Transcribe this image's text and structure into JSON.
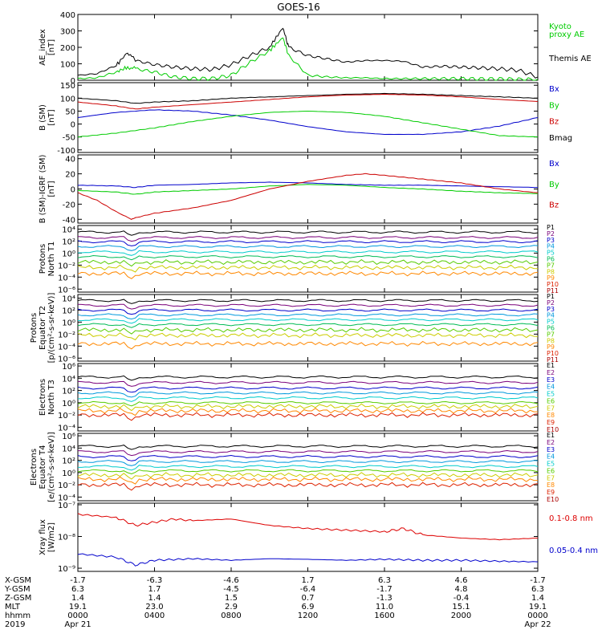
{
  "title": "GOES-16",
  "panels": [
    {
      "id": "ae",
      "ylabel": [
        "AE_index",
        "[nT]"
      ],
      "yticks": [
        "400",
        "300",
        "200",
        "100",
        "0"
      ],
      "legend": [
        {
          "text": "Kyoto",
          "color": "#00cc00"
        },
        {
          "text": "proxy AE",
          "color": "#00cc00"
        },
        {
          "text": "Themis AE",
          "color": "#000000"
        }
      ]
    },
    {
      "id": "bsm",
      "ylabel": [
        "B (SM)",
        "[nT]"
      ],
      "yticks": [
        "150",
        "100",
        "50",
        "0",
        "-50",
        "-100"
      ],
      "legend": [
        {
          "text": "Bx",
          "color": "#0000cc"
        },
        {
          "text": "By",
          "color": "#00cc00"
        },
        {
          "text": "Bz",
          "color": "#cc0000"
        },
        {
          "text": "Bmag",
          "color": "#000000"
        }
      ]
    },
    {
      "id": "bigrf",
      "ylabel": [
        "B (SM)-IGRF (SM)",
        "[nT]"
      ],
      "yticks": [
        "40",
        "20",
        "0",
        "-20",
        "-40"
      ],
      "legend": [
        {
          "text": "Bx",
          "color": "#0000cc"
        },
        {
          "text": "By",
          "color": "#00cc00"
        },
        {
          "text": "Bz",
          "color": "#cc0000"
        }
      ]
    },
    {
      "id": "pn",
      "ylabel": [
        "Protons",
        "North T1"
      ],
      "yticks": [
        "10⁴",
        "10²",
        "10⁰",
        "10⁻²",
        "10⁻⁴",
        "10⁻⁶"
      ],
      "legend": [
        {
          "text": "P1",
          "color": "#000000"
        },
        {
          "text": "P2",
          "color": "#7a007a"
        },
        {
          "text": "P3",
          "color": "#0000cc"
        },
        {
          "text": "P4",
          "color": "#0099dd"
        },
        {
          "text": "P5",
          "color": "#00cccc"
        },
        {
          "text": "P6",
          "color": "#00bb55"
        },
        {
          "text": "P7",
          "color": "#55cc00"
        },
        {
          "text": "P8",
          "color": "#cccc00"
        },
        {
          "text": "P9",
          "color": "#ff8800"
        },
        {
          "text": "P10",
          "color": "#dd2200"
        },
        {
          "text": "P11",
          "color": "#aa0000"
        }
      ]
    },
    {
      "id": "pe",
      "ylabel": [
        "Protons",
        "Equator T2",
        "[p/(cm²-s-sr-keV)]"
      ],
      "yticks": [
        "10⁴",
        "10²",
        "10⁰",
        "10⁻²",
        "10⁻⁴",
        "10⁻⁶"
      ],
      "legend": [
        {
          "text": "P1",
          "color": "#000000"
        },
        {
          "text": "P2",
          "color": "#7a007a"
        },
        {
          "text": "P3",
          "color": "#0000cc"
        },
        {
          "text": "P4",
          "color": "#0099dd"
        },
        {
          "text": "P5",
          "color": "#00cccc"
        },
        {
          "text": "P6",
          "color": "#00bb55"
        },
        {
          "text": "P7",
          "color": "#55cc00"
        },
        {
          "text": "P8",
          "color": "#cccc00"
        },
        {
          "text": "P9",
          "color": "#ff8800"
        },
        {
          "text": "P10",
          "color": "#dd2200"
        },
        {
          "text": "P11",
          "color": "#aa0000"
        }
      ]
    },
    {
      "id": "en",
      "ylabel": [
        "Electrons",
        "North T3"
      ],
      "yticks": [
        "10⁶",
        "10⁴",
        "10²",
        "10⁰",
        "10⁻²",
        "10⁻⁴"
      ],
      "legend": [
        {
          "text": "E1",
          "color": "#000000"
        },
        {
          "text": "E2",
          "color": "#7a007a"
        },
        {
          "text": "E3",
          "color": "#0000cc"
        },
        {
          "text": "E4",
          "color": "#0099dd"
        },
        {
          "text": "E5",
          "color": "#00cccc"
        },
        {
          "text": "E6",
          "color": "#55cc00"
        },
        {
          "text": "E7",
          "color": "#cccc00"
        },
        {
          "text": "E8",
          "color": "#ff8800"
        },
        {
          "text": "E9",
          "color": "#dd2200"
        },
        {
          "text": "E10",
          "color": "#aa0000"
        }
      ]
    },
    {
      "id": "ee",
      "ylabel": [
        "Electrons",
        "Equator T4",
        "[e/(cm²-s-sr-keV)]"
      ],
      "yticks": [
        "10⁶",
        "10⁴",
        "10²",
        "10⁰",
        "10⁻²",
        "10⁻⁴"
      ],
      "legend": [
        {
          "text": "E1",
          "color": "#000000"
        },
        {
          "text": "E2",
          "color": "#7a007a"
        },
        {
          "text": "E3",
          "color": "#0000cc"
        },
        {
          "text": "E4",
          "color": "#0099dd"
        },
        {
          "text": "E5",
          "color": "#00cccc"
        },
        {
          "text": "E6",
          "color": "#55cc00"
        },
        {
          "text": "E7",
          "color": "#cccc00"
        },
        {
          "text": "E8",
          "color": "#ff8800"
        },
        {
          "text": "E9",
          "color": "#dd2200"
        },
        {
          "text": "E10",
          "color": "#aa0000"
        }
      ]
    },
    {
      "id": "xray",
      "ylabel": [
        "Xray flux",
        "[W/m2]"
      ],
      "yticks": [
        "10⁻⁷",
        "10⁻⁸",
        "10⁻⁹"
      ],
      "legend": [
        {
          "text": "0.1-0.8 nm",
          "color": "#dd0000"
        },
        {
          "text": "0.05-0.4 nm",
          "color": "#0000cc"
        }
      ]
    }
  ],
  "footer": {
    "row_labels": [
      "X-GSM",
      "Y-GSM",
      "Z-GSM",
      "MLT",
      "hhmm",
      "2019"
    ],
    "columns": [
      [
        "-1.7",
        "6.3",
        "1.4",
        "19.1",
        "0000",
        "Apr 21"
      ],
      [
        "-6.3",
        "1.7",
        "1.4",
        "23.0",
        "0400",
        ""
      ],
      [
        "-4.6",
        "-4.5",
        "1.5",
        "2.9",
        "0800",
        ""
      ],
      [
        "1.7",
        "-6.4",
        "0.7",
        "6.9",
        "1200",
        ""
      ],
      [
        "6.3",
        "-1.7",
        "-1.3",
        "11.0",
        "1600",
        ""
      ],
      [
        "4.6",
        "4.8",
        "-0.4",
        "15.1",
        "2000",
        ""
      ],
      [
        "-1.7",
        "6.3",
        "1.4",
        "19.1",
        "0000",
        "Apr 22"
      ]
    ]
  },
  "chart_data": {
    "type": "line",
    "x_hours": [
      0,
      4,
      8,
      12,
      16,
      20,
      24
    ],
    "series": [
      {
        "panel": "ae",
        "name": "Themis AE",
        "color": "#000000",
        "x": [
          0,
          1,
          2,
          2.6,
          3,
          4,
          5,
          6,
          7,
          8,
          9,
          10,
          10.7,
          11,
          12,
          13,
          14,
          15,
          16,
          17,
          18,
          19,
          20,
          21,
          22,
          23,
          24
        ],
        "y": [
          30,
          40,
          90,
          170,
          120,
          95,
          80,
          70,
          65,
          95,
          150,
          200,
          320,
          200,
          150,
          130,
          110,
          120,
          120,
          115,
          80,
          85,
          80,
          75,
          70,
          60,
          20
        ]
      },
      {
        "panel": "ae",
        "name": "Kyoto proxy AE",
        "color": "#00cc00",
        "x": [
          0,
          1,
          2,
          2.6,
          3,
          4,
          5,
          6,
          7,
          8,
          9,
          10,
          10.7,
          11,
          12,
          13,
          14,
          15,
          16,
          17,
          18,
          19,
          20,
          21,
          22,
          23,
          24
        ],
        "y": [
          10,
          15,
          50,
          80,
          70,
          50,
          20,
          10,
          10,
          30,
          110,
          180,
          260,
          150,
          30,
          20,
          15,
          15,
          10,
          10,
          10,
          10,
          10,
          8,
          8,
          5,
          5
        ]
      },
      {
        "panel": "bsm",
        "name": "Bmag",
        "color": "#000000",
        "x": [
          0,
          2,
          3,
          4,
          6,
          8,
          10,
          12,
          14,
          16,
          18,
          20,
          22,
          24
        ],
        "y": [
          100,
          90,
          80,
          85,
          90,
          100,
          105,
          110,
          115,
          118,
          115,
          110,
          105,
          100
        ]
      },
      {
        "panel": "bsm",
        "name": "Bz",
        "color": "#cc0000",
        "x": [
          0,
          2,
          3,
          4,
          6,
          8,
          10,
          12,
          14,
          16,
          18,
          20,
          22,
          24
        ],
        "y": [
          85,
          70,
          58,
          65,
          75,
          85,
          95,
          105,
          112,
          115,
          112,
          105,
          95,
          87
        ]
      },
      {
        "panel": "bsm",
        "name": "Bx",
        "color": "#0000cc",
        "x": [
          0,
          2,
          4,
          6,
          8,
          10,
          12,
          14,
          16,
          18,
          20,
          22,
          24
        ],
        "y": [
          25,
          45,
          55,
          50,
          35,
          15,
          -10,
          -30,
          -40,
          -40,
          -30,
          -8,
          25
        ]
      },
      {
        "panel": "bsm",
        "name": "By",
        "color": "#00cc00",
        "x": [
          0,
          2,
          4,
          6,
          8,
          10,
          12,
          14,
          16,
          18,
          20,
          22,
          24
        ],
        "y": [
          -50,
          -35,
          -15,
          10,
          30,
          45,
          50,
          45,
          30,
          5,
          -20,
          -45,
          -50
        ]
      },
      {
        "panel": "bigrf",
        "name": "Bx",
        "color": "#0000cc",
        "x": [
          0,
          2,
          3,
          4,
          6,
          8,
          10,
          12,
          14,
          16,
          18,
          20,
          22,
          24
        ],
        "y": [
          5,
          4,
          2,
          5,
          6,
          8,
          9,
          8,
          6,
          5,
          5,
          4,
          3,
          2
        ]
      },
      {
        "panel": "bigrf",
        "name": "By",
        "color": "#00cc00",
        "x": [
          0,
          2,
          3,
          4,
          6,
          8,
          10,
          12,
          14,
          16,
          18,
          20,
          22,
          24
        ],
        "y": [
          -2,
          -4,
          -7,
          -4,
          -2,
          0,
          4,
          6,
          5,
          2,
          0,
          -3,
          -5,
          -6
        ]
      },
      {
        "panel": "bigrf",
        "name": "Bz",
        "color": "#cc0000",
        "x": [
          0,
          1,
          2,
          2.8,
          3,
          4,
          6,
          8,
          10,
          12,
          14,
          15,
          16,
          18,
          20,
          22,
          24
        ],
        "y": [
          -5,
          -15,
          -30,
          -40,
          -38,
          -32,
          -25,
          -15,
          0,
          10,
          18,
          20,
          18,
          13,
          8,
          0,
          -5
        ]
      },
      {
        "panel": "xray",
        "name": "0.1-0.8 nm",
        "color": "#dd0000",
        "x": [
          0,
          2,
          3,
          4,
          5,
          6,
          8,
          10,
          12,
          14,
          16,
          17,
          18,
          20,
          22,
          24
        ],
        "y": [
          -7.3,
          -7.4,
          -7.65,
          -7.55,
          -7.45,
          -7.5,
          -7.45,
          -7.65,
          -7.75,
          -7.8,
          -7.85,
          -7.75,
          -7.95,
          -8.05,
          -8.1,
          -8.05
        ]
      },
      {
        "panel": "xray",
        "name": "0.05-0.4 nm",
        "color": "#0000cc",
        "x": [
          0,
          2,
          3,
          4,
          6,
          8,
          10,
          12,
          14,
          16,
          18,
          20,
          22,
          24
        ],
        "y": [
          -8.55,
          -8.65,
          -8.9,
          -8.75,
          -8.7,
          -8.75,
          -8.7,
          -8.72,
          -8.75,
          -8.72,
          -8.75,
          -8.75,
          -8.78,
          -8.8
        ]
      }
    ],
    "flux_panels": [
      {
        "panel": "pn",
        "levels": [
          3.5,
          2.6,
          1.9,
          1.1,
          0.2,
          -0.6,
          -1.5,
          -2.4,
          -3.4
        ],
        "colors": [
          "#000000",
          "#7a007a",
          "#0000cc",
          "#0099dd",
          "#00cccc",
          "#00bb55",
          "#55cc00",
          "#cccc00",
          "#ff8800"
        ]
      },
      {
        "panel": "pe",
        "levels": [
          3.6,
          2.8,
          2.0,
          1.2,
          0.4,
          -0.4,
          -1.3,
          -2.2,
          -3.6
        ],
        "colors": [
          "#000000",
          "#7a007a",
          "#0000cc",
          "#0099dd",
          "#00cccc",
          "#00bb55",
          "#55cc00",
          "#cccc00",
          "#ff8800"
        ]
      },
      {
        "panel": "en",
        "levels": [
          4.2,
          3.3,
          2.4,
          1.6,
          0.8,
          0.0,
          -0.6,
          -1.3,
          -2.0
        ],
        "colors": [
          "#000000",
          "#7a007a",
          "#0000cc",
          "#0099dd",
          "#00cccc",
          "#55cc00",
          "#cccc00",
          "#ff8800",
          "#dd2200"
        ]
      },
      {
        "panel": "ee",
        "levels": [
          4.3,
          3.4,
          2.6,
          1.8,
          1.0,
          0.3,
          -0.4,
          -1.1,
          -2.0
        ],
        "colors": [
          "#000000",
          "#7a007a",
          "#0000cc",
          "#0099dd",
          "#00cccc",
          "#55cc00",
          "#cccc00",
          "#ff8800",
          "#dd2200"
        ]
      }
    ]
  }
}
